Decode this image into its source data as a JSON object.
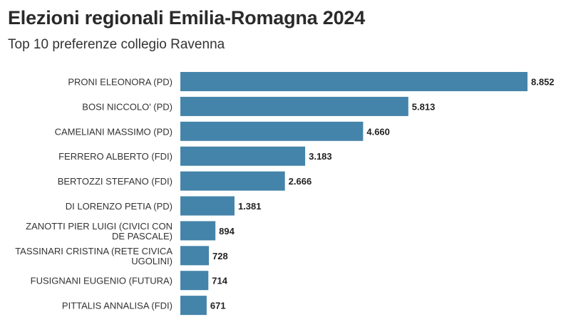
{
  "chart_data": {
    "type": "bar",
    "orientation": "horizontal",
    "title": "Elezioni regionali Emilia-Romagna 2024",
    "subtitle": "Top 10 preferenze collegio Ravenna",
    "xlabel": "",
    "ylabel": "",
    "xlim": [
      0,
      8852
    ],
    "grid": false,
    "bar_color": "#4584aa",
    "categories": [
      [
        "PRONI ELEONORA (PD)"
      ],
      [
        "BOSI NICCOLO' (PD)"
      ],
      [
        "CAMELIANI MASSIMO (PD)"
      ],
      [
        "FERRERO ALBERTO (FDI)"
      ],
      [
        "BERTOZZI STEFANO (FDI)"
      ],
      [
        "DI LORENZO PETIA (PD)"
      ],
      [
        "ZANOTTI PIER LUIGI (CIVICI CON",
        "DE PASCALE)"
      ],
      [
        "TASSINARI CRISTINA (RETE CIVICA",
        "UGOLINI)"
      ],
      [
        "FUSIGNANI EUGENIO (FUTURA)"
      ],
      [
        "PITTALIS ANNALISA (FDI)"
      ]
    ],
    "values": [
      8852,
      5813,
      4660,
      3183,
      2666,
      1381,
      894,
      728,
      714,
      671
    ],
    "value_labels": [
      "8.852",
      "5.813",
      "4.660",
      "3.183",
      "2.666",
      "1.381",
      "894",
      "728",
      "714",
      "671"
    ]
  }
}
